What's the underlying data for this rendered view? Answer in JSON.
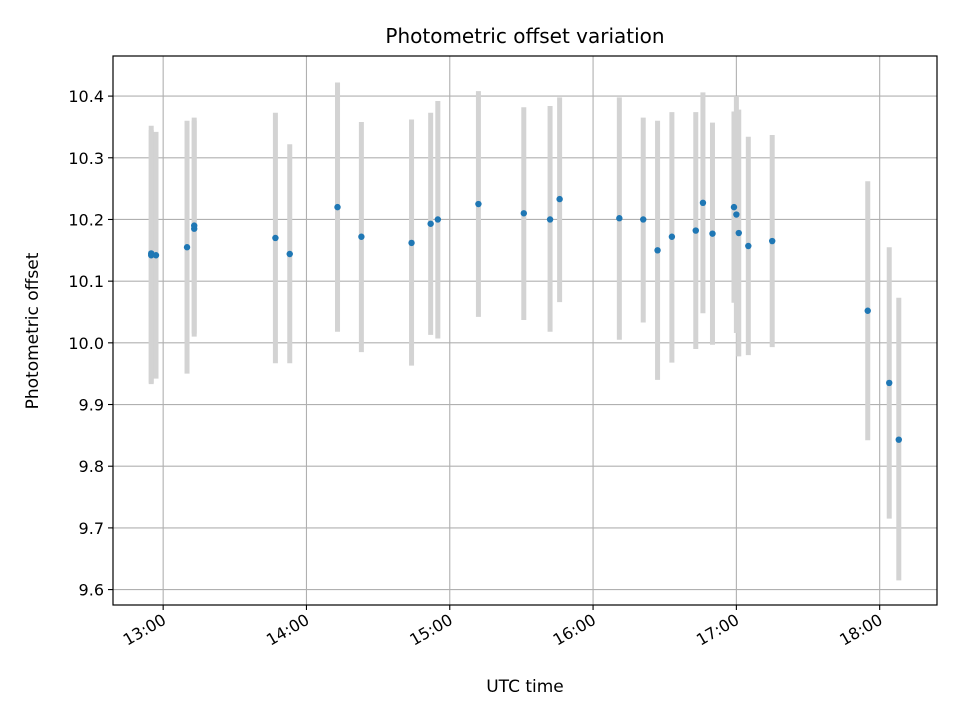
{
  "chart_data": {
    "type": "scatter",
    "title": "Photometric offset variation",
    "xlabel": "UTC time",
    "ylabel": "Photometric offset",
    "x_ticks": [
      "13:00",
      "14:00",
      "15:00",
      "16:00",
      "17:00",
      "18:00"
    ],
    "y_ticks": [
      9.6,
      9.7,
      9.8,
      9.9,
      10.0,
      10.1,
      10.2,
      10.3,
      10.4
    ],
    "xlim": [
      "12:39",
      "18:24"
    ],
    "ylim": [
      9.575,
      10.465
    ],
    "grid": true,
    "error_bar_color": "#d3d3d3",
    "marker_color": "#1f77b4",
    "points": [
      {
        "t": "12:55",
        "y": 10.142,
        "lo": 9.933,
        "hi": 10.345
      },
      {
        "t": "12:55",
        "y": 10.145,
        "lo": 9.935,
        "hi": 10.352
      },
      {
        "t": "12:57",
        "y": 10.142,
        "lo": 9.942,
        "hi": 10.342
      },
      {
        "t": "13:10",
        "y": 10.155,
        "lo": 9.95,
        "hi": 10.36
      },
      {
        "t": "13:13",
        "y": 10.185,
        "lo": 10.01,
        "hi": 10.365
      },
      {
        "t": "13:13",
        "y": 10.19,
        "lo": 10.015,
        "hi": 10.36
      },
      {
        "t": "13:47",
        "y": 10.17,
        "lo": 9.967,
        "hi": 10.373
      },
      {
        "t": "13:53",
        "y": 10.144,
        "lo": 9.967,
        "hi": 10.322
      },
      {
        "t": "14:13",
        "y": 10.22,
        "lo": 10.018,
        "hi": 10.422
      },
      {
        "t": "14:23",
        "y": 10.172,
        "lo": 9.985,
        "hi": 10.358
      },
      {
        "t": "14:44",
        "y": 10.162,
        "lo": 9.963,
        "hi": 10.362
      },
      {
        "t": "14:52",
        "y": 10.193,
        "lo": 10.013,
        "hi": 10.373
      },
      {
        "t": "14:55",
        "y": 10.2,
        "lo": 10.007,
        "hi": 10.392
      },
      {
        "t": "15:12",
        "y": 10.225,
        "lo": 10.042,
        "hi": 10.408
      },
      {
        "t": "15:31",
        "y": 10.21,
        "lo": 10.037,
        "hi": 10.382
      },
      {
        "t": "15:42",
        "y": 10.2,
        "lo": 10.018,
        "hi": 10.384
      },
      {
        "t": "15:46",
        "y": 10.233,
        "lo": 10.066,
        "hi": 10.398
      },
      {
        "t": "16:11",
        "y": 10.202,
        "lo": 10.005,
        "hi": 10.398
      },
      {
        "t": "16:21",
        "y": 10.2,
        "lo": 10.033,
        "hi": 10.365
      },
      {
        "t": "16:27",
        "y": 10.15,
        "lo": 9.94,
        "hi": 10.36
      },
      {
        "t": "16:33",
        "y": 10.172,
        "lo": 9.968,
        "hi": 10.374
      },
      {
        "t": "16:43",
        "y": 10.182,
        "lo": 9.99,
        "hi": 10.374
      },
      {
        "t": "16:46",
        "y": 10.227,
        "lo": 10.048,
        "hi": 10.406
      },
      {
        "t": "16:50",
        "y": 10.177,
        "lo": 9.997,
        "hi": 10.357
      },
      {
        "t": "16:59",
        "y": 10.22,
        "lo": 10.065,
        "hi": 10.375
      },
      {
        "t": "17:00",
        "y": 10.208,
        "lo": 10.016,
        "hi": 10.4
      },
      {
        "t": "17:01",
        "y": 10.178,
        "lo": 9.978,
        "hi": 10.378
      },
      {
        "t": "17:05",
        "y": 10.157,
        "lo": 9.98,
        "hi": 10.334
      },
      {
        "t": "17:15",
        "y": 10.165,
        "lo": 9.993,
        "hi": 10.337
      },
      {
        "t": "17:55",
        "y": 10.052,
        "lo": 9.842,
        "hi": 10.262
      },
      {
        "t": "18:04",
        "y": 9.935,
        "lo": 9.715,
        "hi": 10.155
      },
      {
        "t": "18:08",
        "y": 9.843,
        "lo": 9.615,
        "hi": 10.073
      }
    ]
  }
}
